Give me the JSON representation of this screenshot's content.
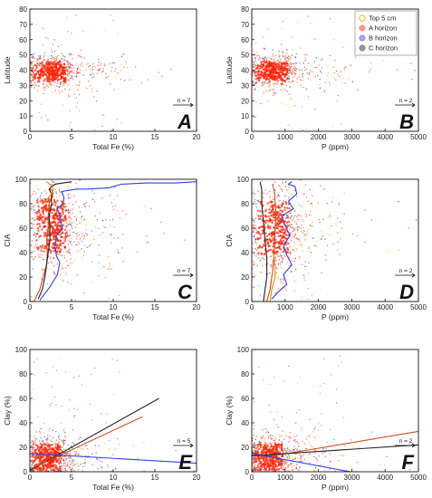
{
  "colors": {
    "top5": "#d4c020",
    "a_horizon": "#ff2a10",
    "b_horizon": "#3340dd",
    "c_horizon": "#222222",
    "a_line": "#c85020",
    "top_line": "#e08a00"
  },
  "legend": {
    "items": [
      {
        "label": "Top 5 cm",
        "key": "top5"
      },
      {
        "label": "A horizon",
        "key": "a_horizon"
      },
      {
        "label": "B horizon",
        "key": "b_horizon"
      },
      {
        "label": "C horizon",
        "key": "c_horizon"
      }
    ],
    "placement": "top-right of panel B"
  },
  "chart_data": [
    {
      "panel": "A",
      "type": "scatter",
      "xlabel": "Total Fe (%)",
      "ylabel": "Latitude",
      "xlim": [
        0,
        20
      ],
      "ylim": [
        0,
        80
      ],
      "xticks": [
        0,
        5,
        10,
        15,
        20
      ],
      "yticks": [
        0,
        10,
        20,
        30,
        40,
        50,
        60,
        70,
        80
      ],
      "n_label": "n = 7",
      "cloud": {
        "center": [
          2.5,
          39
        ],
        "spread": [
          1.6,
          5.5
        ]
      }
    },
    {
      "panel": "B",
      "type": "scatter",
      "xlabel": "P (ppm)",
      "ylabel": "Latitude",
      "xlim": [
        0,
        5000
      ],
      "ylim": [
        0,
        80
      ],
      "xticks": [
        0,
        1000,
        2000,
        3000,
        4000,
        5000
      ],
      "yticks": [
        0,
        10,
        20,
        30,
        40,
        50,
        60,
        70,
        80
      ],
      "n_label": "n = 2",
      "cloud": {
        "center": [
          600,
          39
        ],
        "spread": [
          400,
          5.5
        ]
      }
    },
    {
      "panel": "C",
      "type": "scatter",
      "xlabel": "Total Fe (%)",
      "ylabel": "CIA",
      "xlim": [
        0,
        20
      ],
      "ylim": [
        0,
        100
      ],
      "xticks": [
        0,
        5,
        10,
        15,
        20
      ],
      "yticks": [
        0,
        20,
        40,
        60,
        80,
        100
      ],
      "n_label": "n = 7",
      "cloud": {
        "center": [
          2.6,
          62
        ],
        "spread": [
          1.5,
          18
        ]
      },
      "lines": [
        {
          "key": "b_horizon",
          "x": [
            1.2,
            2.4,
            3.3,
            3.6,
            3.2,
            3.0,
            3.2,
            3.9,
            3.6,
            3.3,
            4.0,
            4.1,
            3.8,
            5.6,
            7.0,
            9.5,
            11.0,
            14.0,
            17.5,
            20.0
          ],
          "y": [
            1,
            12,
            22,
            32,
            37,
            45,
            54,
            60,
            70,
            76,
            80,
            85,
            90,
            92,
            92,
            93,
            96,
            97,
            97,
            98
          ]
        },
        {
          "key": "a_line",
          "x": [
            0.5,
            1.2,
            1.6,
            2.0,
            2.1,
            2.0,
            2.2,
            2.2,
            2.3,
            2.6,
            2.8,
            2.7,
            2.3
          ],
          "y": [
            0,
            10,
            20,
            30,
            40,
            50,
            60,
            70,
            80,
            85,
            89,
            91,
            92
          ]
        },
        {
          "key": "c_horizon",
          "x": [
            1.0,
            1.5,
            1.8,
            2.0,
            2.2,
            2.4,
            2.4,
            2.3,
            2.6,
            2.6,
            2.3,
            3.0,
            5.0
          ],
          "y": [
            2,
            10,
            20,
            30,
            40,
            50,
            60,
            70,
            80,
            88,
            92,
            96,
            98
          ]
        },
        {
          "key": "top_line",
          "x": [
            1.6,
            2.1,
            2.6,
            2.8,
            2.5,
            2.2,
            2.0
          ],
          "y": [
            80,
            84,
            88,
            92,
            95,
            97,
            98
          ]
        }
      ]
    },
    {
      "panel": "D",
      "type": "scatter",
      "xlabel": "P (ppm)",
      "ylabel": "CIA",
      "xlim": [
        0,
        5000
      ],
      "ylim": [
        0,
        100
      ],
      "xticks": [
        0,
        1000,
        2000,
        3000,
        4000,
        5000
      ],
      "yticks": [
        0,
        20,
        40,
        60,
        80,
        100
      ],
      "n_label": "n = 2",
      "cloud": {
        "center": [
          650,
          60
        ],
        "spread": [
          400,
          18
        ]
      },
      "lines": [
        {
          "key": "b_horizon",
          "x": [
            600,
            800,
            1050,
            950,
            1200,
            1050,
            950,
            1150,
            1000,
            900,
            1250,
            1100,
            1350,
            1300,
            1100,
            1200
          ],
          "y": [
            2,
            8,
            14,
            22,
            30,
            38,
            46,
            54,
            62,
            70,
            76,
            82,
            88,
            94,
            96,
            98
          ]
        },
        {
          "key": "a_line",
          "x": [
            450,
            550,
            600,
            650,
            680,
            700,
            720,
            680,
            620
          ],
          "y": [
            0,
            10,
            20,
            30,
            45,
            60,
            75,
            90,
            96
          ]
        },
        {
          "key": "c_horizon",
          "x": [
            350,
            400,
            450,
            450,
            400,
            350,
            300,
            300,
            250
          ],
          "y": [
            0,
            10,
            20,
            35,
            50,
            65,
            80,
            92,
            98
          ]
        },
        {
          "key": "top_line",
          "x": [
            550,
            600,
            700,
            700,
            650
          ],
          "y": [
            0,
            10,
            20,
            30,
            40
          ]
        }
      ]
    },
    {
      "panel": "E",
      "type": "scatter",
      "xlabel": "Total Fe (%)",
      "ylabel": "Clay (%)",
      "xlim": [
        0,
        20
      ],
      "ylim": [
        0,
        100
      ],
      "xticks": [
        0,
        5,
        10,
        15,
        20
      ],
      "yticks": [
        0,
        20,
        40,
        60,
        80,
        100
      ],
      "n_label": "n = 5",
      "cloud": {
        "center": [
          2.0,
          12
        ],
        "spread": [
          1.4,
          9
        ]
      },
      "lines": [
        {
          "key": "c_horizon",
          "x": [
            0,
            15.5
          ],
          "y": [
            1,
            60
          ]
        },
        {
          "key": "a_line",
          "x": [
            0,
            13.5
          ],
          "y": [
            2,
            45
          ]
        },
        {
          "key": "b_horizon",
          "x": [
            0,
            20
          ],
          "y": [
            15,
            7
          ]
        }
      ]
    },
    {
      "panel": "F",
      "type": "scatter",
      "xlabel": "P (ppm)",
      "ylabel": "Clay (%)",
      "xlim": [
        0,
        5000
      ],
      "ylim": [
        0,
        100
      ],
      "xticks": [
        0,
        1000,
        2000,
        3000,
        4000,
        5000
      ],
      "yticks": [
        0,
        20,
        40,
        60,
        80,
        100
      ],
      "n_label": "n = 2",
      "cloud": {
        "center": [
          500,
          12
        ],
        "spread": [
          350,
          9
        ]
      },
      "lines": [
        {
          "key": "a_line",
          "x": [
            0,
            5000
          ],
          "y": [
            10,
            33
          ]
        },
        {
          "key": "c_horizon",
          "x": [
            0,
            5000
          ],
          "y": [
            13,
            22
          ]
        },
        {
          "key": "b_horizon",
          "x": [
            0,
            2950
          ],
          "y": [
            15,
            0
          ]
        }
      ]
    }
  ]
}
